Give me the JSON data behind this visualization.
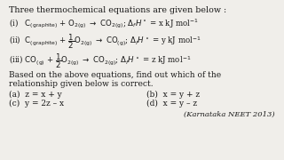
{
  "background_color": "#f0eeea",
  "title_line": "Three thermochemical equations are given below :",
  "eq1": "(i)   $\\mathrm{C_{(graphite)}}$ + $\\mathrm{O_{2(g)}}$ $\\rightarrow$ $\\mathrm{CO_{2(g)}}$; $\\Delta_f H^\\circ$ = x kJ mol$^{-1}$",
  "eq2": "(ii)  $\\mathrm{C_{(graphite)}}$ + $\\dfrac{1}{2}$$\\mathrm{O_{2(g)}}$ $\\rightarrow$ $\\mathrm{CO_{(g)}}$; $\\Delta_f H^\\circ$ = y kJ mol$^{-1}$",
  "eq3": "(iii) $\\mathrm{CO_{(g)}}$ + $\\dfrac{1}{2}$$\\mathrm{O_{2(g)}}$ $\\rightarrow$ $\\mathrm{CO_{2(g)}}$; $\\Delta_f H^\\circ$ = z kJ mol$^{-1}$",
  "q1": "Based on the above equations, find out which of the",
  "q2": "relationship given below is correct.",
  "opt_a": "(a)  z = x + y",
  "opt_b": "(b)  x = y + z",
  "opt_c": "(c)  y = 2z – x",
  "opt_d": "(d)  x = y – z",
  "credit": "(Karnataka NEET 2013)",
  "text_color": "#1a1a1a",
  "fs_title": 6.8,
  "fs_eq": 6.2,
  "fs_q": 6.5,
  "fs_opt": 6.5,
  "fs_credit": 6.0
}
